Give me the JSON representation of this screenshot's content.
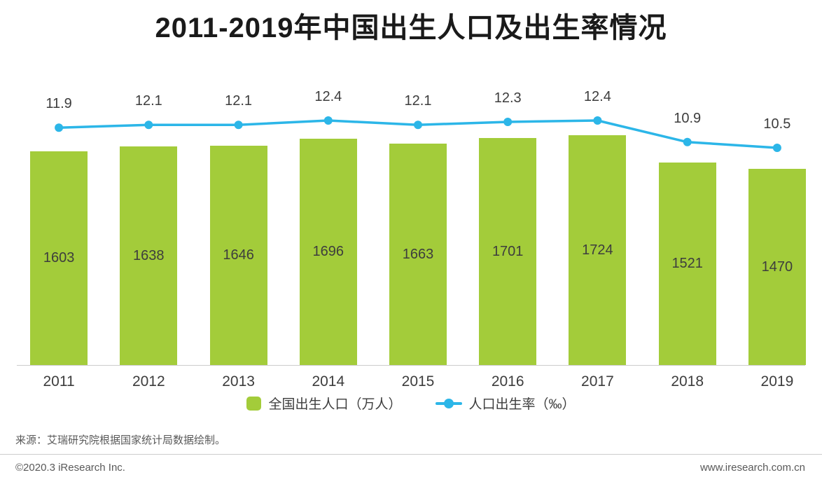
{
  "chart_data": {
    "type": "bar+line",
    "title": "2011-2019年中国出生人口及出生率情况",
    "categories": [
      "2011",
      "2012",
      "2013",
      "2014",
      "2015",
      "2016",
      "2017",
      "2018",
      "2019"
    ],
    "series": [
      {
        "name": "全国出生人口（万人）",
        "type": "bar",
        "color": "#a3cc3a",
        "values": [
          1603,
          1638,
          1646,
          1696,
          1663,
          1701,
          1724,
          1521,
          1470
        ]
      },
      {
        "name": "人口出生率（‰）",
        "type": "line",
        "color": "#2cb6e8",
        "values": [
          11.9,
          12.1,
          12.1,
          12.4,
          12.1,
          12.3,
          12.4,
          10.9,
          10.5
        ]
      }
    ],
    "legend_position": "bottom",
    "grid": false,
    "value_labels_shown": true,
    "y_axis_visible": false
  },
  "source_note": "来源：艾瑞研究院根据国家统计局数据绘制。",
  "footer": {
    "copyright": "©2020.3 iResearch Inc.",
    "website": "www.iresearch.com.cn"
  },
  "colors": {
    "bar": "#a3cc3a",
    "line": "#2cb6e8",
    "title_text": "#1a1a1a",
    "label_text": "#3d3d3d",
    "muted_text": "#595959",
    "axis_line": "#cccccc"
  }
}
